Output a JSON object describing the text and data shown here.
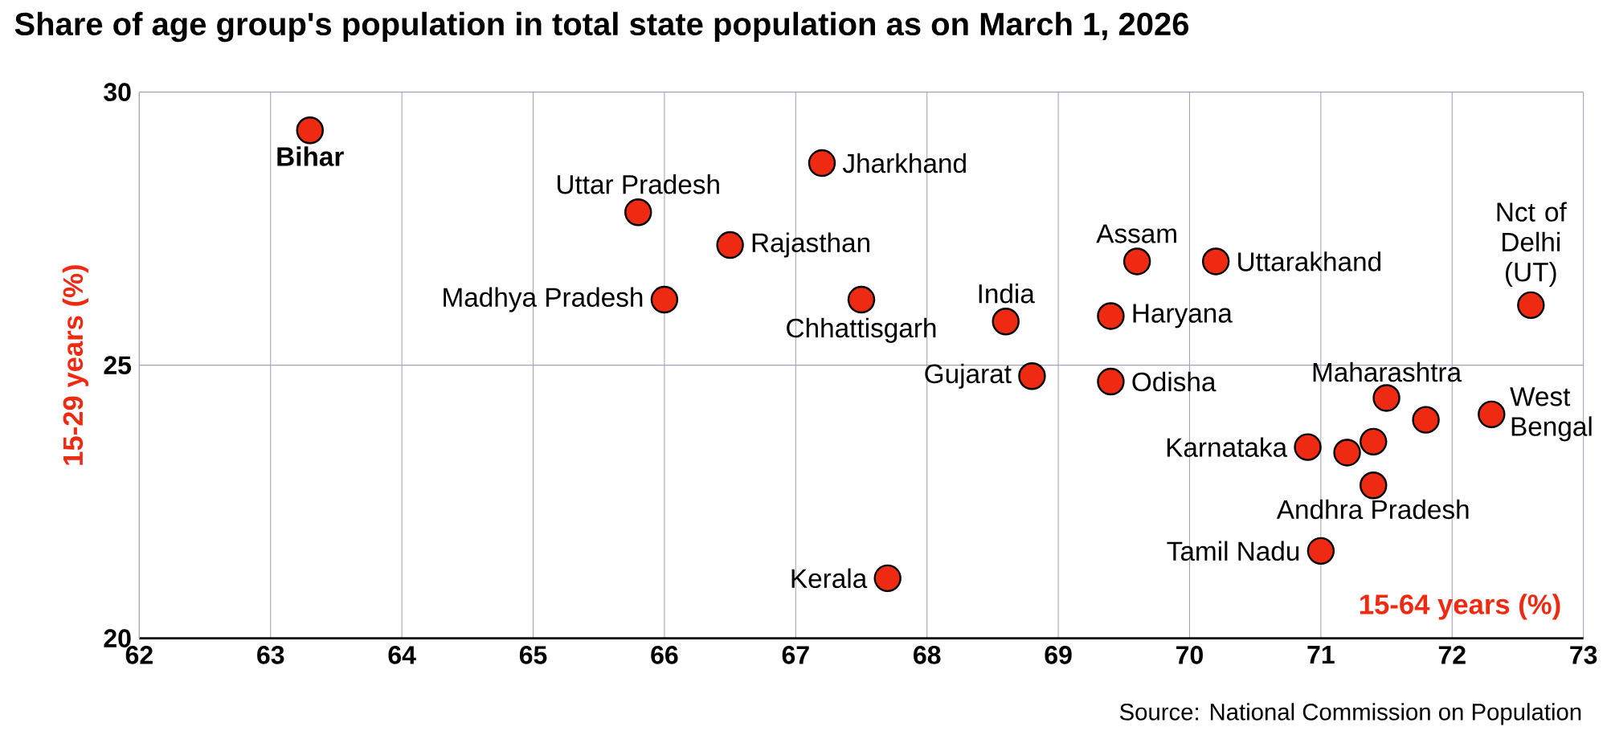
{
  "chart_data": {
    "type": "scatter",
    "title": "Share of age group's population in total state population as on March 1, 2026",
    "xlabel": "15-64 years (%)",
    "ylabel": "15-29 years (%)",
    "xlim": [
      62,
      73
    ],
    "xticks": [
      62,
      63,
      64,
      65,
      66,
      67,
      68,
      69,
      70,
      71,
      72,
      73
    ],
    "ylim": [
      20,
      30
    ],
    "yticks": [
      20,
      25,
      30
    ],
    "grid": true,
    "marker": "circle",
    "series": [
      {
        "color": "#ee2b12",
        "x": [
          63.3,
          65.8,
          66.5,
          66.0,
          67.2,
          67.5,
          67.7,
          68.6,
          68.8,
          69.6,
          69.4,
          69.4,
          70.2,
          72.6,
          71.5,
          72.3,
          70.9,
          71.4,
          71.0,
          71.2,
          71.4,
          71.8
        ],
        "values": [
          29.3,
          27.8,
          27.2,
          26.2,
          28.7,
          26.2,
          21.1,
          25.8,
          24.8,
          26.9,
          25.9,
          24.7,
          26.9,
          26.1,
          24.4,
          24.1,
          23.5,
          22.8,
          21.6,
          23.4,
          23.6,
          24.0
        ]
      }
    ],
    "annotations": [
      {
        "text": "Bihar",
        "x": 63.3,
        "y": 29.3
      },
      {
        "text": "Uttar Pradesh",
        "x": 65.8,
        "y": 27.8
      },
      {
        "text": "Rajasthan",
        "x": 66.5,
        "y": 27.2
      },
      {
        "text": "Madhya Pradesh",
        "x": 66.0,
        "y": 26.2
      },
      {
        "text": "Jharkhand",
        "x": 67.2,
        "y": 28.7
      },
      {
        "text": "Chhattisgarh",
        "x": 67.5,
        "y": 26.2
      },
      {
        "text": "Kerala",
        "x": 67.7,
        "y": 21.1
      },
      {
        "text": "India",
        "x": 68.6,
        "y": 25.8
      },
      {
        "text": "Gujarat",
        "x": 68.8,
        "y": 24.8
      },
      {
        "text": "Assam",
        "x": 69.6,
        "y": 26.9
      },
      {
        "text": "Haryana",
        "x": 69.4,
        "y": 25.9
      },
      {
        "text": "Odisha",
        "x": 69.4,
        "y": 24.7
      },
      {
        "text": "Uttarakhand",
        "x": 70.2,
        "y": 26.9
      },
      {
        "text": "Nct of Delhi (UT)",
        "x": 72.6,
        "y": 26.1
      },
      {
        "text": "Maharashtra",
        "x": 71.5,
        "y": 24.4
      },
      {
        "text": "West Bengal",
        "x": 72.3,
        "y": 24.1
      },
      {
        "text": "Karnataka",
        "x": 70.9,
        "y": 23.5
      },
      {
        "text": "Andhra Pradesh",
        "x": 71.4,
        "y": 22.8
      },
      {
        "text": "Tamil Nadu",
        "x": 71.0,
        "y": 21.6
      },
      "Source: National Commission on Population"
    ]
  }
}
